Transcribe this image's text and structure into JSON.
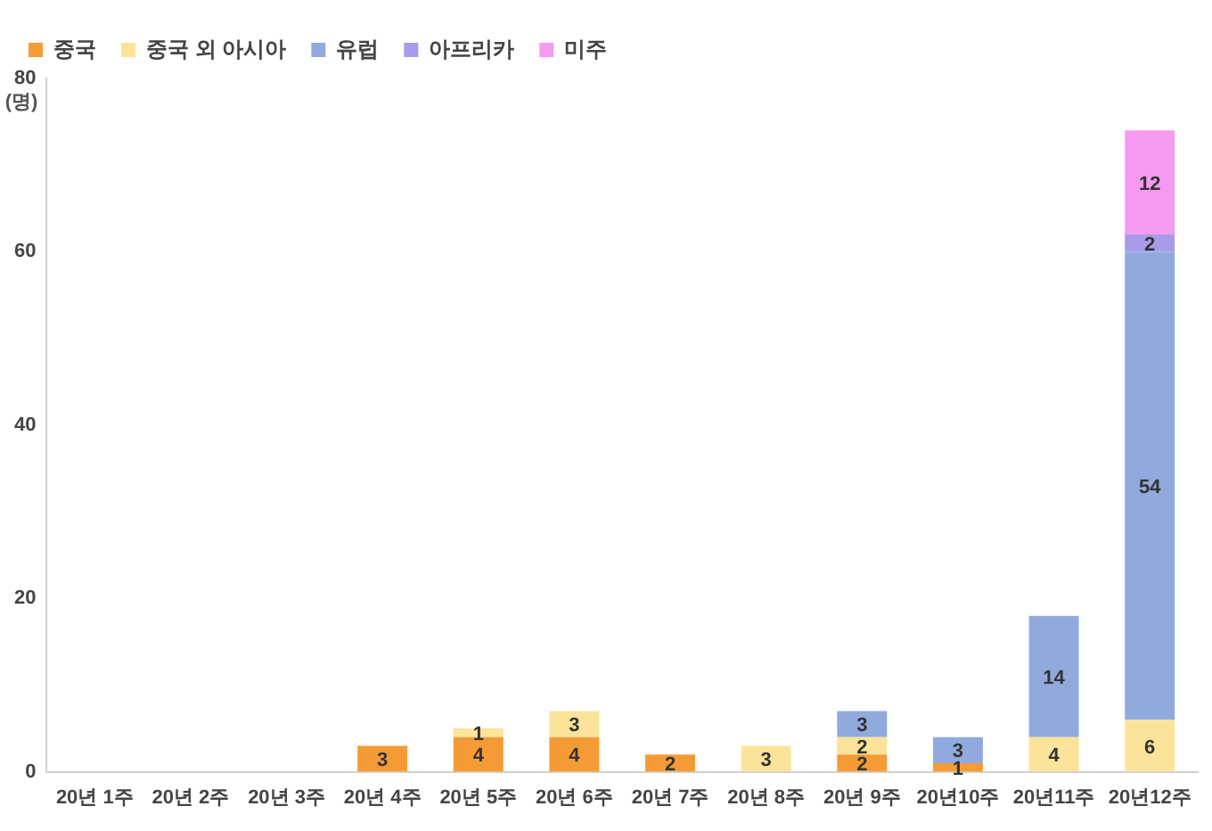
{
  "chart_data": {
    "type": "bar",
    "stacked": true,
    "ylabel": "(명)",
    "categories": [
      "20년 1주",
      "20년 2주",
      "20년 3주",
      "20년 4주",
      "20년 5주",
      "20년 6주",
      "20년 7주",
      "20년 8주",
      "20년 9주",
      "20년10주",
      "20년11주",
      "20년12주"
    ],
    "series": [
      {
        "name": "중국",
        "color": "#f59b35",
        "values": [
          null,
          null,
          null,
          3,
          4,
          4,
          2,
          null,
          2,
          1,
          null,
          null
        ]
      },
      {
        "name": "중국 외 아시아",
        "color": "#fce39a",
        "values": [
          null,
          null,
          null,
          null,
          1,
          3,
          null,
          3,
          2,
          null,
          4,
          6
        ]
      },
      {
        "name": "유럽",
        "color": "#91aade",
        "values": [
          null,
          null,
          null,
          null,
          null,
          null,
          null,
          null,
          3,
          3,
          14,
          54
        ]
      },
      {
        "name": "아프리카",
        "color": "#a99bea",
        "values": [
          null,
          null,
          null,
          null,
          null,
          null,
          null,
          null,
          null,
          null,
          null,
          2
        ]
      },
      {
        "name": "미주",
        "color": "#f49af0",
        "values": [
          null,
          null,
          null,
          null,
          null,
          null,
          null,
          null,
          null,
          null,
          null,
          12
        ]
      }
    ],
    "ylim": [
      0,
      80
    ],
    "yticks": [
      0,
      20,
      40,
      60,
      80
    ],
    "grid": false,
    "legend": "top left",
    "data_labels": true
  }
}
